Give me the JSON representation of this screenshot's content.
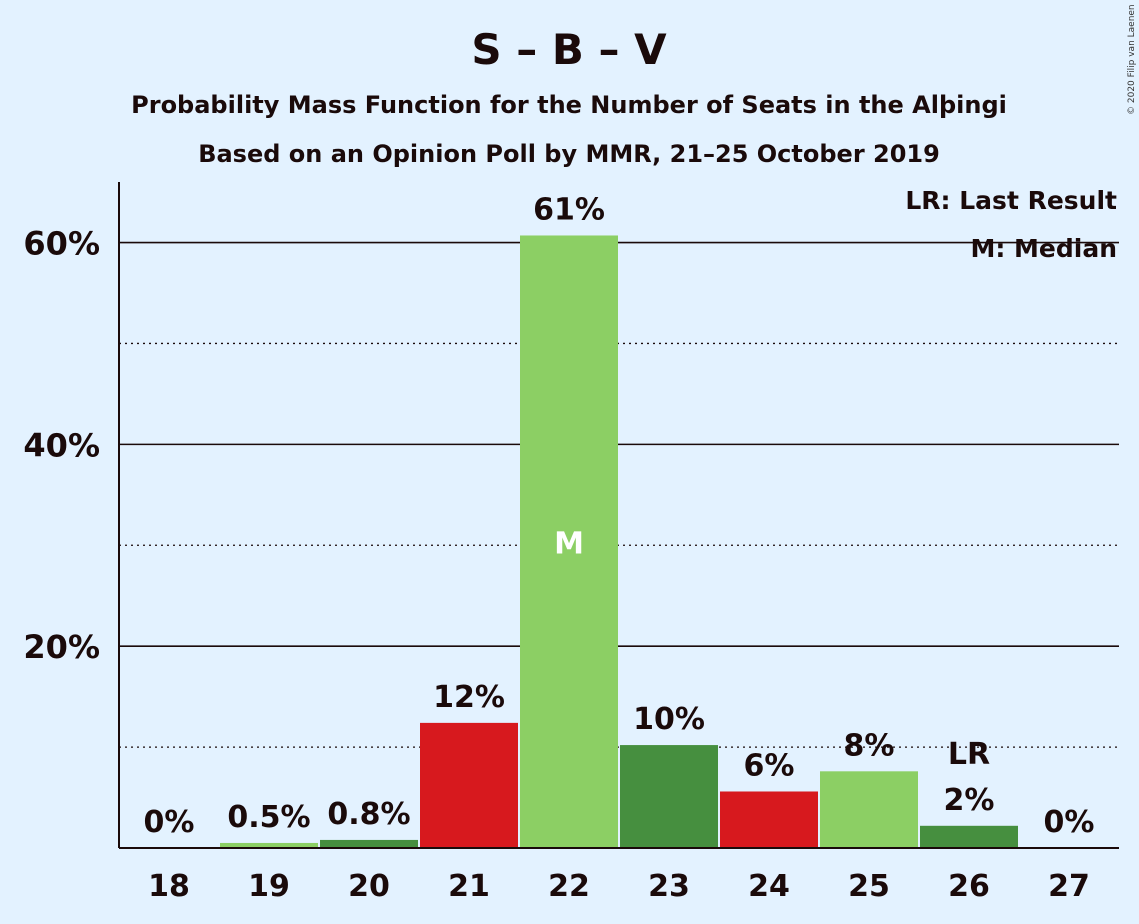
{
  "chart_data": {
    "type": "bar",
    "title": "S – B – V",
    "subtitle": "Probability Mass Function for the Number of Seats in the Alþingi",
    "subtitle2": "Based on an Opinion Poll by MMR, 21–25 October 2019",
    "copyright": "© 2020 Filip van Laenen",
    "categories": [
      "18",
      "19",
      "20",
      "21",
      "22",
      "23",
      "24",
      "25",
      "26",
      "27"
    ],
    "values": [
      0,
      0.5,
      0.8,
      12.4,
      60.7,
      10.2,
      5.6,
      7.6,
      2.2,
      0
    ],
    "value_labels": [
      "0%",
      "0.5%",
      "0.8%",
      "12%",
      "61%",
      "10%",
      "6%",
      "8%",
      "2%",
      "0%"
    ],
    "bar_colors": [
      "#8ccf64",
      "#8ccf64",
      "#468f3f",
      "#d7191e",
      "#8ccf64",
      "#468f3f",
      "#d7191e",
      "#8ccf64",
      "#468f3f",
      "#8ccf64"
    ],
    "ylim": [
      0,
      66
    ],
    "yticks": [
      {
        "value": 20,
        "label": "20%"
      },
      {
        "value": 40,
        "label": "40%"
      },
      {
        "value": 60,
        "label": "60%"
      }
    ],
    "minor_gridlines": [
      10,
      30,
      50
    ],
    "median_index": 4,
    "median_marker": "M",
    "last_result_index": 8,
    "last_result_marker": "LR",
    "legend": {
      "placement": "top-right",
      "items": [
        "LR: Last Result",
        "M: Median"
      ]
    },
    "grid": true
  }
}
